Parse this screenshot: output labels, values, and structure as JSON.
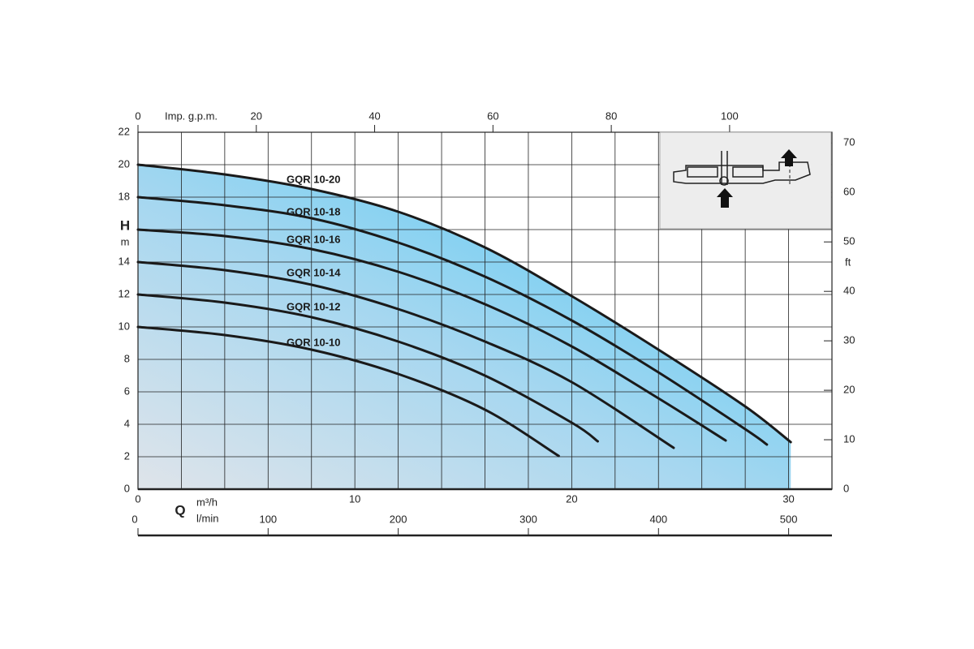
{
  "chart_data": {
    "type": "line",
    "x_label": "Q",
    "x_unit": "m³/h",
    "xlim": [
      0,
      32
    ],
    "xticks": [
      0,
      {
        "value": 2,
        "label": null
      },
      {
        "value": 4,
        "label": null
      },
      {
        "value": 6,
        "label": null
      },
      {
        "value": 8,
        "label": null
      },
      10,
      {
        "value": 12,
        "label": null
      },
      {
        "value": 14,
        "label": null
      },
      {
        "value": 16,
        "label": null
      },
      {
        "value": 18,
        "label": null
      },
      20,
      {
        "value": 22,
        "label": null
      },
      {
        "value": 24,
        "label": null
      },
      {
        "value": 26,
        "label": null
      },
      {
        "value": 28,
        "label": null
      },
      30,
      {
        "value": 32,
        "label": null
      }
    ],
    "y_label": "H",
    "y_unit": "m",
    "ylim": [
      0,
      22
    ],
    "yticks": [
      0,
      2,
      4,
      6,
      8,
      10,
      12,
      14,
      {
        "value": 16,
        "label": null
      },
      18,
      20,
      22
    ],
    "y2_label": "ft",
    "y2lim": [
      0,
      72.18
    ],
    "y2ticks": [
      0,
      10,
      20,
      30,
      40,
      50,
      60,
      70
    ],
    "top_axis": {
      "label": "Imp. g.p.m.",
      "lim": [
        0,
        117.3
      ],
      "ticks": [
        0,
        20,
        40,
        60,
        80,
        100
      ]
    },
    "bottom_axis": {
      "label": "l/min",
      "lim": [
        0,
        533.3
      ],
      "ticks": [
        0,
        100,
        200,
        300,
        400,
        500
      ]
    },
    "grid": true,
    "fill": true,
    "series": [
      {
        "name": "GQR 10-20",
        "color": "#1a1a1a",
        "x": [
          0,
          4,
          8,
          12,
          16,
          20,
          24,
          28,
          30.1
        ],
        "values": [
          20,
          19.4,
          18.5,
          17.1,
          14.9,
          11.9,
          8.6,
          5.1,
          2.9
        ]
      },
      {
        "name": "GQR 10-18",
        "color": "#1a1a1a",
        "x": [
          0,
          4,
          8,
          12,
          16,
          20,
          24,
          28,
          29.0
        ],
        "values": [
          18,
          17.5,
          16.7,
          15.2,
          13.1,
          10.4,
          7.2,
          3.7,
          2.75
        ]
      },
      {
        "name": "GQR 10-16",
        "color": "#1a1a1a",
        "x": [
          0,
          4,
          8,
          12,
          16,
          20,
          24,
          27.1
        ],
        "values": [
          16,
          15.6,
          14.8,
          13.4,
          11.4,
          8.8,
          5.6,
          3.0
        ]
      },
      {
        "name": "GQR 10-14",
        "color": "#1a1a1a",
        "x": [
          0,
          4,
          8,
          12,
          16,
          20,
          24.7
        ],
        "values": [
          14,
          13.5,
          12.6,
          11.1,
          9.1,
          6.6,
          2.55
        ]
      },
      {
        "name": "GQR 10-12",
        "color": "#1a1a1a",
        "x": [
          0,
          4,
          8,
          12,
          16,
          20,
          21.2
        ],
        "values": [
          12,
          11.5,
          10.6,
          9.1,
          7.0,
          4.1,
          2.95
        ]
      },
      {
        "name": "GQR 10-10",
        "color": "#1a1a1a",
        "x": [
          0,
          4,
          8,
          12,
          16,
          19.4
        ],
        "values": [
          10,
          9.5,
          8.6,
          7.1,
          4.9,
          2.05
        ]
      }
    ]
  }
}
